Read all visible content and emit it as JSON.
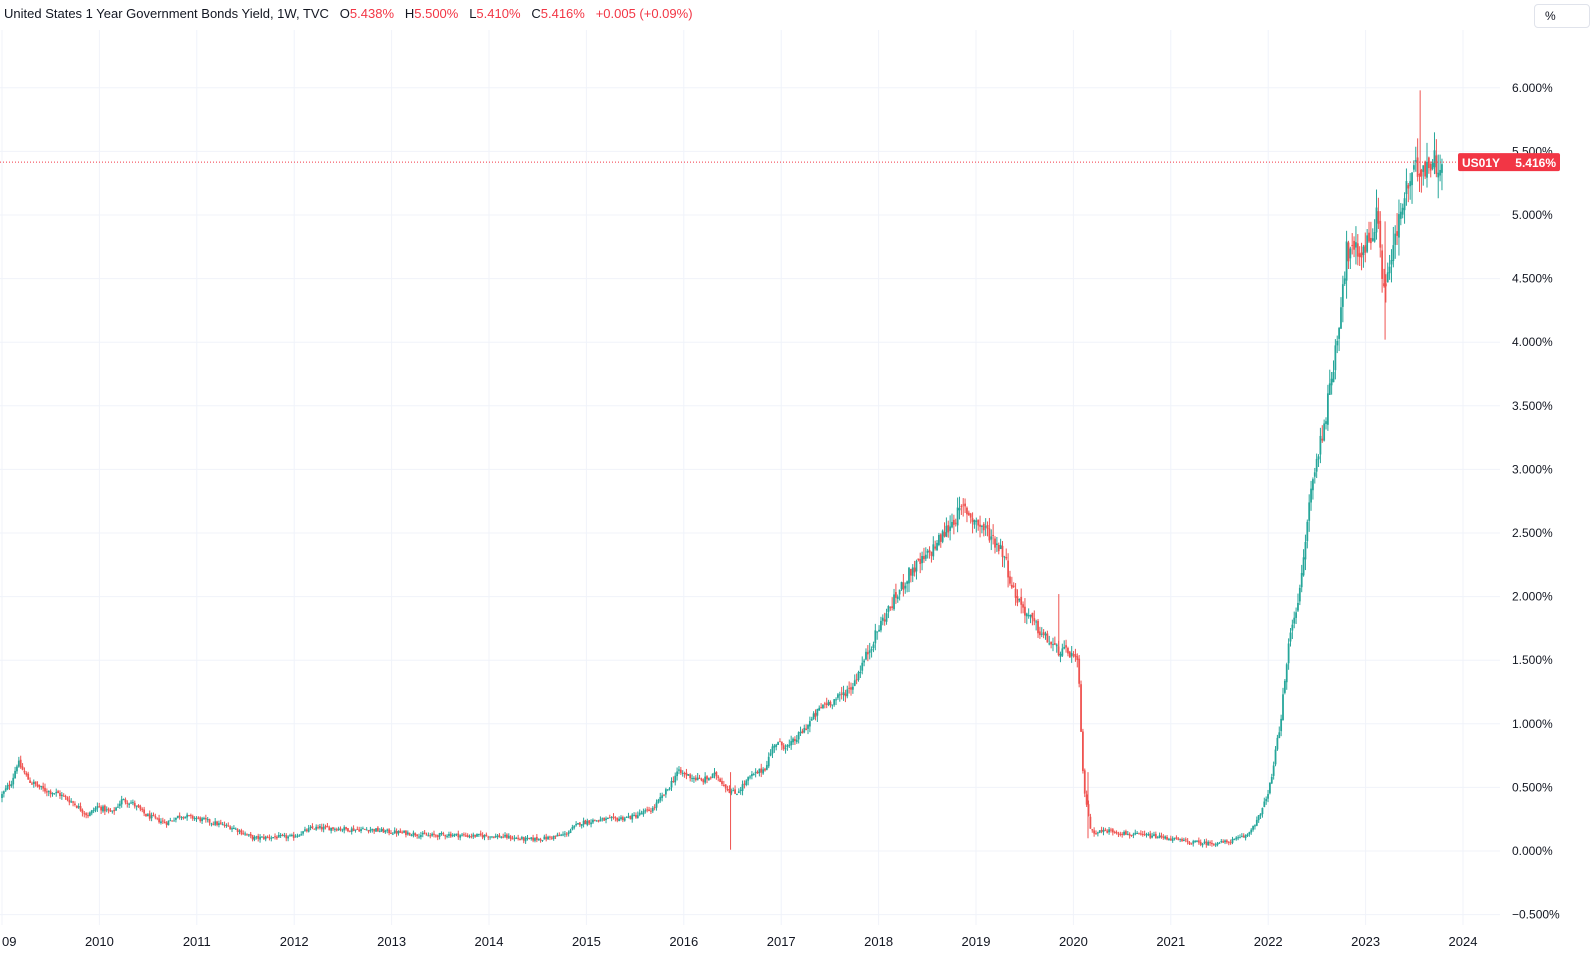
{
  "legend": {
    "symbol": "United States 1 Year Government Bonds Yield, 1W, TVC",
    "o_label": "O",
    "o_value": "5.438%",
    "h_label": "H",
    "h_value": "5.500%",
    "l_label": "L",
    "l_value": "5.410%",
    "c_label": "C",
    "c_value": "5.416%",
    "change": "+0.005 (+0.09%)"
  },
  "unit_button": "%",
  "price_tag": {
    "ticker": "US01Y",
    "value": "5.416%"
  },
  "colors": {
    "up": "#26a69a",
    "down": "#ef5350",
    "grid": "#f0f3fa",
    "tag": "#f23645"
  },
  "chart_data": {
    "type": "candlestick",
    "title": "United States 1 Year Government Bonds Yield, 1W, TVC",
    "y_unit": "%",
    "ylim": [
      -0.55,
      6.4
    ],
    "xlim": [
      2009.0,
      2025.1
    ],
    "last_close": 5.416,
    "y_ticks": [
      "6.000%",
      "5.500%",
      "5.000%",
      "4.500%",
      "4.000%",
      "3.500%",
      "3.000%",
      "2.500%",
      "2.000%",
      "1.500%",
      "1.000%",
      "0.500%",
      "0.000%",
      "−0.500%"
    ],
    "y_tick_values": [
      6.0,
      5.5,
      5.0,
      4.5,
      4.0,
      3.5,
      3.0,
      2.5,
      2.0,
      1.5,
      1.0,
      0.5,
      0.0,
      -0.5
    ],
    "x_ticks": [
      "09",
      "2010",
      "2011",
      "2012",
      "2013",
      "2014",
      "2015",
      "2016",
      "2017",
      "2018",
      "2019",
      "2020",
      "2021",
      "2022",
      "2023",
      "2024"
    ],
    "x_tick_values": [
      2009.0,
      2010.0,
      2011.0,
      2012.0,
      2013.0,
      2014.0,
      2015.0,
      2016.0,
      2017.0,
      2018.0,
      2019.0,
      2020.0,
      2021.0,
      2022.0,
      2023.0,
      2024.0
    ],
    "grid": true,
    "path_points": [
      [
        2009.0,
        0.42
      ],
      [
        2009.12,
        0.55
      ],
      [
        2009.18,
        0.7
      ],
      [
        2009.3,
        0.55
      ],
      [
        2009.45,
        0.48
      ],
      [
        2009.6,
        0.45
      ],
      [
        2009.75,
        0.38
      ],
      [
        2009.9,
        0.28
      ],
      [
        2010.0,
        0.35
      ],
      [
        2010.15,
        0.3
      ],
      [
        2010.25,
        0.4
      ],
      [
        2010.35,
        0.38
      ],
      [
        2010.5,
        0.28
      ],
      [
        2010.7,
        0.22
      ],
      [
        2010.85,
        0.28
      ],
      [
        2011.0,
        0.26
      ],
      [
        2011.2,
        0.22
      ],
      [
        2011.4,
        0.18
      ],
      [
        2011.6,
        0.1
      ],
      [
        2011.8,
        0.11
      ],
      [
        2012.0,
        0.11
      ],
      [
        2012.2,
        0.18
      ],
      [
        2012.4,
        0.18
      ],
      [
        2012.6,
        0.17
      ],
      [
        2012.8,
        0.17
      ],
      [
        2013.0,
        0.15
      ],
      [
        2013.2,
        0.14
      ],
      [
        2013.4,
        0.12
      ],
      [
        2013.6,
        0.13
      ],
      [
        2013.8,
        0.12
      ],
      [
        2014.0,
        0.12
      ],
      [
        2014.2,
        0.11
      ],
      [
        2014.4,
        0.09
      ],
      [
        2014.6,
        0.1
      ],
      [
        2014.8,
        0.13
      ],
      [
        2014.95,
        0.22
      ],
      [
        2015.1,
        0.24
      ],
      [
        2015.3,
        0.25
      ],
      [
        2015.5,
        0.27
      ],
      [
        2015.7,
        0.33
      ],
      [
        2015.85,
        0.48
      ],
      [
        2015.95,
        0.62
      ],
      [
        2016.05,
        0.6
      ],
      [
        2016.2,
        0.55
      ],
      [
        2016.35,
        0.6
      ],
      [
        2016.48,
        0.48
      ],
      [
        2016.55,
        0.45
      ],
      [
        2016.7,
        0.58
      ],
      [
        2016.85,
        0.65
      ],
      [
        2016.95,
        0.85
      ],
      [
        2017.1,
        0.82
      ],
      [
        2017.25,
        0.95
      ],
      [
        2017.45,
        1.15
      ],
      [
        2017.6,
        1.2
      ],
      [
        2017.75,
        1.3
      ],
      [
        2017.9,
        1.55
      ],
      [
        2018.05,
        1.8
      ],
      [
        2018.2,
        2.0
      ],
      [
        2018.35,
        2.2
      ],
      [
        2018.5,
        2.3
      ],
      [
        2018.65,
        2.45
      ],
      [
        2018.8,
        2.62
      ],
      [
        2018.9,
        2.7
      ],
      [
        2019.0,
        2.6
      ],
      [
        2019.15,
        2.5
      ],
      [
        2019.3,
        2.35
      ],
      [
        2019.4,
        2.05
      ],
      [
        2019.55,
        1.85
      ],
      [
        2019.7,
        1.7
      ],
      [
        2019.85,
        1.58
      ],
      [
        2020.0,
        1.55
      ],
      [
        2020.07,
        1.45
      ],
      [
        2020.12,
        0.55
      ],
      [
        2020.2,
        0.15
      ],
      [
        2020.4,
        0.16
      ],
      [
        2020.6,
        0.13
      ],
      [
        2020.8,
        0.12
      ],
      [
        2021.0,
        0.1
      ],
      [
        2021.2,
        0.07
      ],
      [
        2021.4,
        0.06
      ],
      [
        2021.6,
        0.07
      ],
      [
        2021.8,
        0.12
      ],
      [
        2021.95,
        0.3
      ],
      [
        2022.05,
        0.55
      ],
      [
        2022.15,
        1.05
      ],
      [
        2022.25,
        1.75
      ],
      [
        2022.35,
        2.05
      ],
      [
        2022.45,
        2.8
      ],
      [
        2022.55,
        3.2
      ],
      [
        2022.65,
        3.6
      ],
      [
        2022.75,
        4.2
      ],
      [
        2022.82,
        4.7
      ],
      [
        2022.95,
        4.7
      ],
      [
        2023.05,
        4.8
      ],
      [
        2023.15,
        5.0
      ],
      [
        2023.2,
        4.4
      ],
      [
        2023.3,
        4.7
      ],
      [
        2023.4,
        5.1
      ],
      [
        2023.5,
        5.3
      ],
      [
        2023.6,
        5.4
      ],
      [
        2023.7,
        5.42
      ],
      [
        2023.8,
        5.42
      ]
    ],
    "spikes": [
      {
        "x": 2016.48,
        "low": 0.01,
        "high": 0.62
      },
      {
        "x": 2019.85,
        "low": 1.55,
        "high": 2.02
      },
      {
        "x": 2020.15,
        "low": 0.1,
        "high": 0.62
      },
      {
        "x": 2023.2,
        "low": 4.02,
        "high": 4.95
      },
      {
        "x": 2023.56,
        "low": 5.3,
        "high": 5.98
      }
    ],
    "candle_step_years": 0.0192
  }
}
